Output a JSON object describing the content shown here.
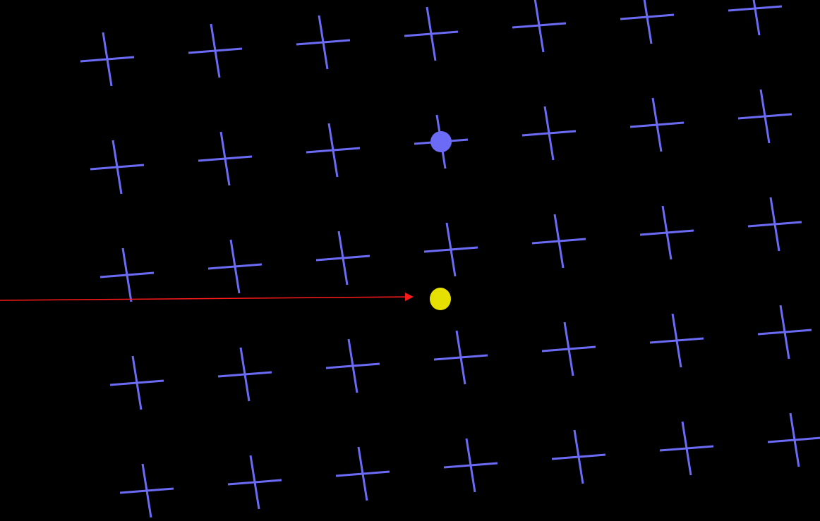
{
  "scene": {
    "background": "#000000",
    "grid_color": "#6b6bf5",
    "marker_color": "#6b6bf5",
    "target_color": "#e6e000",
    "arrow_color": "#ff1a1a",
    "rows": 5,
    "cols": 7,
    "highlighted_cell": {
      "row": 1,
      "col": 3
    },
    "cross_icon": "crosshair-icon",
    "marker_icon": "filled-circle-icon",
    "target_icon": "filled-circle-icon",
    "arrow_icon": "arrow-right-icon"
  }
}
